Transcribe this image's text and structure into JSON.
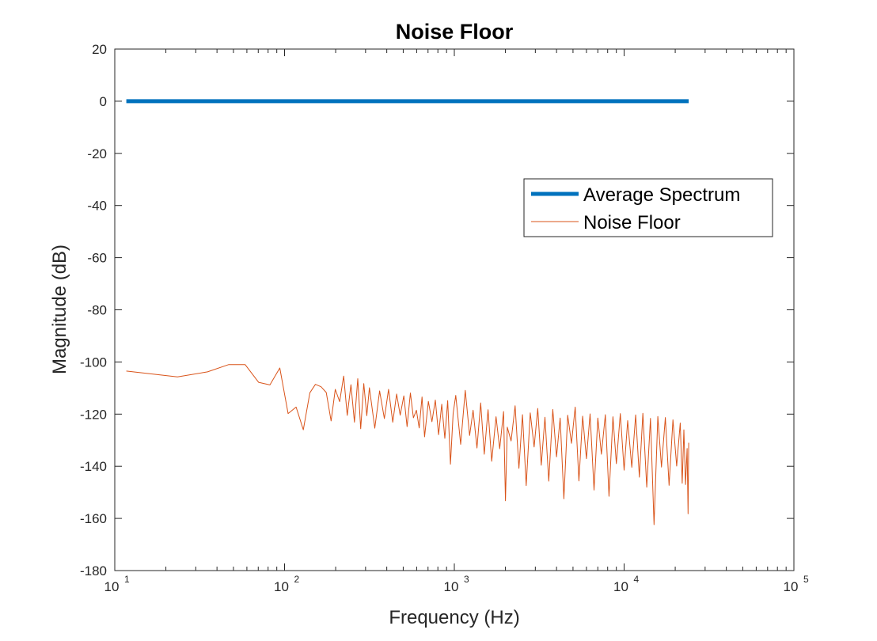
{
  "chart_data": {
    "type": "line",
    "title": "Noise Floor",
    "xlabel": "Frequency (Hz)",
    "ylabel": "Magnitude (dB)",
    "xscale": "log",
    "xlim": [
      10,
      100000
    ],
    "ylim": [
      -180,
      20
    ],
    "grid": false,
    "legend_position": "upper-right",
    "x_ticks": [
      {
        "value": 10,
        "base": "10",
        "exp": "1"
      },
      {
        "value": 100,
        "base": "10",
        "exp": "2"
      },
      {
        "value": 1000,
        "base": "10",
        "exp": "3"
      },
      {
        "value": 10000,
        "base": "10",
        "exp": "4"
      },
      {
        "value": 100000,
        "base": "10",
        "exp": "5"
      }
    ],
    "y_ticks": [
      {
        "value": 20,
        "label": "20"
      },
      {
        "value": 0,
        "label": "0"
      },
      {
        "value": -20,
        "label": "-20"
      },
      {
        "value": -40,
        "label": "-40"
      },
      {
        "value": -60,
        "label": "-60"
      },
      {
        "value": -80,
        "label": "-80"
      },
      {
        "value": -100,
        "label": "-100"
      },
      {
        "value": -120,
        "label": "-120"
      },
      {
        "value": -140,
        "label": "-140"
      },
      {
        "value": -160,
        "label": "-160"
      },
      {
        "value": -180,
        "label": "-180"
      }
    ],
    "series": [
      {
        "name": "Average Spectrum",
        "color": "#0072BD",
        "line_width": "thick",
        "x": [
          11.7,
          24000
        ],
        "y": [
          0,
          0
        ]
      },
      {
        "name": "Noise Floor",
        "color": "#D95319",
        "line_width": "thin",
        "x": [
          11.7,
          23.4,
          35.2,
          46.9,
          58.6,
          70.3,
          82,
          93.8,
          105,
          117,
          129,
          141,
          152,
          164,
          176,
          188,
          199,
          211,
          223,
          234,
          246,
          258,
          270,
          281,
          293,
          305,
          316,
          340,
          363,
          387,
          410,
          434,
          457,
          480,
          504,
          527,
          551,
          574,
          598,
          621,
          645,
          668,
          703,
          738,
          773,
          808,
          843,
          879,
          914,
          949,
          984,
          1020,
          1090,
          1160,
          1230,
          1290,
          1360,
          1430,
          1500,
          1580,
          1660,
          1760,
          1850,
          1950,
          2000,
          2050,
          2160,
          2280,
          2400,
          2520,
          2650,
          2800,
          2950,
          3100,
          3250,
          3420,
          3600,
          3800,
          4000,
          4200,
          4420,
          4650,
          4900,
          5150,
          5420,
          5700,
          6000,
          6300,
          6650,
          7000,
          7350,
          7750,
          8150,
          8600,
          9000,
          9500,
          10000,
          10500,
          11100,
          11700,
          12300,
          12900,
          13600,
          14300,
          15000,
          15800,
          16600,
          17500,
          18400,
          19400,
          20400,
          21400,
          22000,
          22500,
          23000,
          23500,
          23800,
          24000
        ],
        "y": [
          -103.5,
          -105.7,
          -103.8,
          -101,
          -101,
          -107.8,
          -108.8,
          -102.3,
          -119.8,
          -117.3,
          -126,
          -111.8,
          -108.6,
          -109.5,
          -111.7,
          -122.6,
          -110.5,
          -115.2,
          -105.4,
          -120.5,
          -108.7,
          -123.1,
          -106.4,
          -125.6,
          -108.3,
          -120.6,
          -109.9,
          -125.4,
          -111.1,
          -121.7,
          -110.5,
          -123.1,
          -112.3,
          -120.4,
          -113,
          -124.8,
          -111.9,
          -121.4,
          -118.5,
          -125.3,
          -113.4,
          -128.7,
          -115.1,
          -122.9,
          -114.6,
          -127.9,
          -116.2,
          -129.3,
          -114.8,
          -139.2,
          -119.7,
          -112.8,
          -131.6,
          -110.9,
          -128.2,
          -118.5,
          -133,
          -115.7,
          -135.4,
          -118.3,
          -138.1,
          -121,
          -133.3,
          -119,
          -153.2,
          -125,
          -130.3,
          -116.8,
          -140.8,
          -120.2,
          -147.4,
          -119.5,
          -132.6,
          -117.8,
          -139.6,
          -121.2,
          -145.7,
          -118.2,
          -136.4,
          -121.5,
          -152.5,
          -120.4,
          -131.2,
          -117.3,
          -145.6,
          -120.8,
          -137.1,
          -119.9,
          -149.1,
          -121.5,
          -135.4,
          -120.2,
          -151.5,
          -121,
          -139,
          -119.8,
          -141.5,
          -122.5,
          -140.4,
          -120.3,
          -144.2,
          -119.7,
          -148,
          -121.6,
          -162.4,
          -120.9,
          -140.3,
          -121.3,
          -147.3,
          -122.2,
          -139.9,
          -123.4,
          -146.5,
          -126,
          -147,
          -133.2,
          -158.2,
          -131
        ]
      }
    ]
  }
}
